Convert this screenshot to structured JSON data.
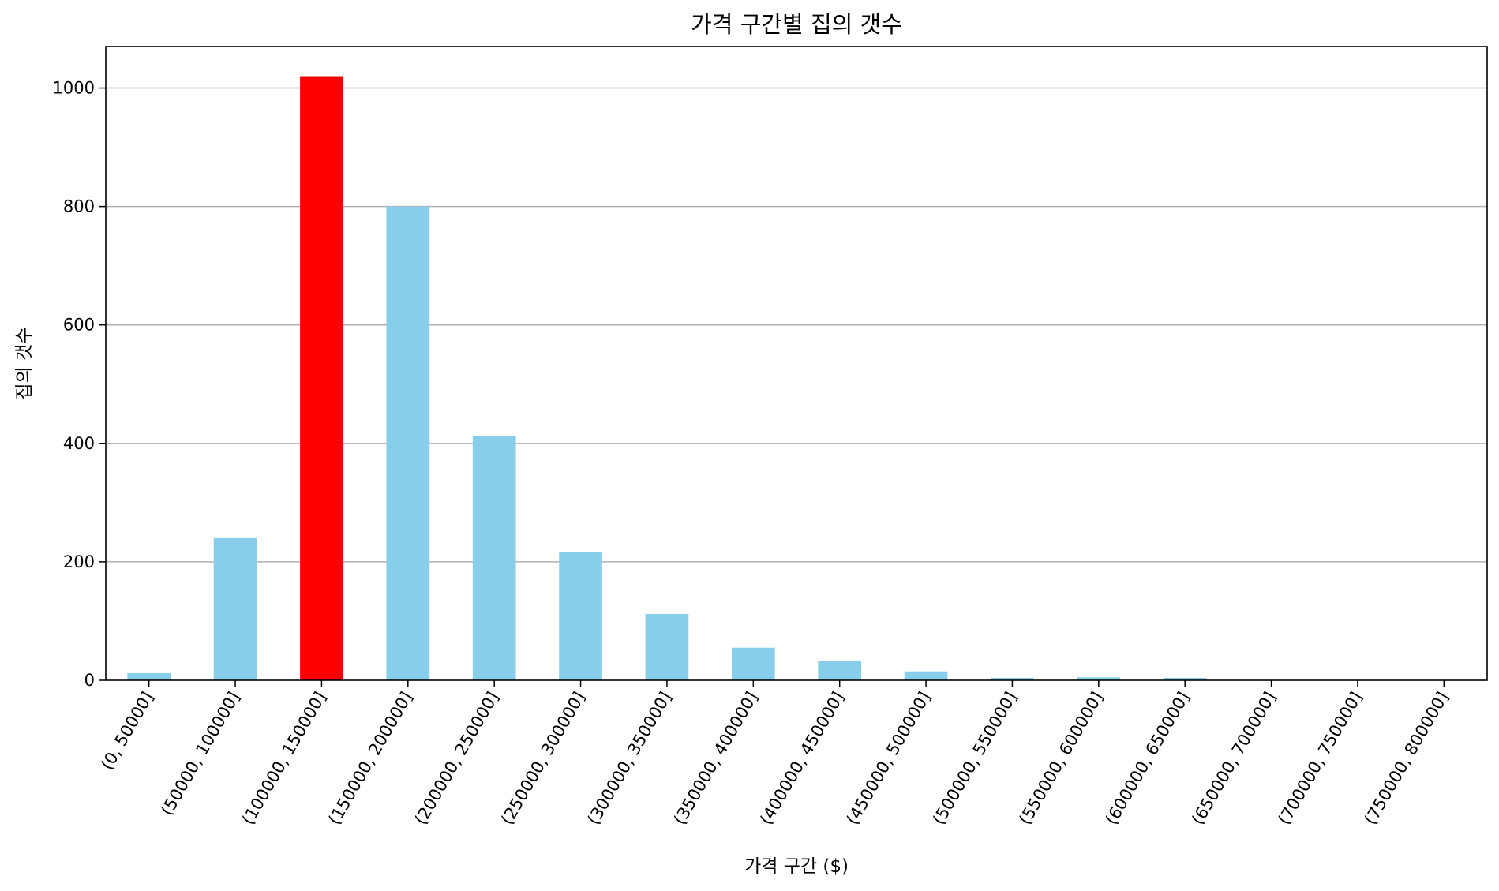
{
  "chart_data": {
    "type": "bar",
    "title": "가격 구간별 집의 갯수",
    "xlabel": "가격 구간 ($)",
    "ylabel": "집의 갯수",
    "categories": [
      "(0, 50000]",
      "(50000, 100000]",
      "(100000, 150000]",
      "(150000, 200000]",
      "(200000, 250000]",
      "(250000, 300000]",
      "(300000, 350000]",
      "(350000, 400000]",
      "(400000, 450000]",
      "(450000, 500000]",
      "(500000, 550000]",
      "(550000, 600000]",
      "(600000, 650000]",
      "(650000, 700000]",
      "(700000, 750000]",
      "(750000, 800000]"
    ],
    "values": [
      12,
      240,
      1020,
      800,
      412,
      216,
      112,
      55,
      33,
      15,
      4,
      5,
      4,
      0,
      0,
      0
    ],
    "bar_colors": [
      "#87ceeb",
      "#87ceeb",
      "#ff0000",
      "#87ceeb",
      "#87ceeb",
      "#87ceeb",
      "#87ceeb",
      "#87ceeb",
      "#87ceeb",
      "#87ceeb",
      "#87ceeb",
      "#87ceeb",
      "#87ceeb",
      "#87ceeb",
      "#87ceeb",
      "#87ceeb"
    ],
    "highlight_color": "#ff0000",
    "default_color": "#87ceeb",
    "ylim": [
      0,
      1070
    ],
    "yticks": [
      0,
      200,
      400,
      600,
      800,
      1000
    ],
    "ytick_labels": [
      "0",
      "200",
      "400",
      "600",
      "800",
      "1000"
    ],
    "grid": "horizontal",
    "legend": "none"
  }
}
